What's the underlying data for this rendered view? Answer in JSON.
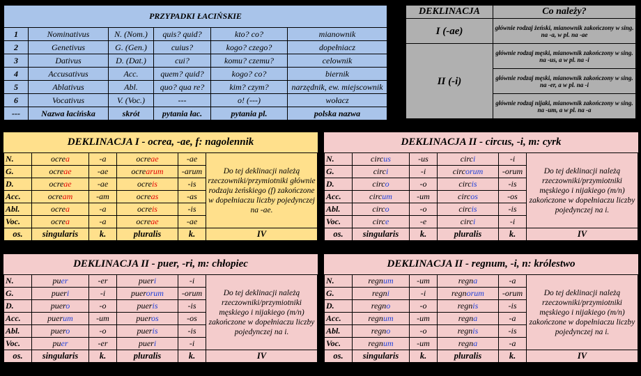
{
  "cases_table": {
    "title": "PRZYPADKI ŁACIŃSKIE",
    "rows": [
      [
        "1",
        "Nominativus",
        "N. (Nom.)",
        "quis? quid?",
        "kto? co?",
        "mianownik"
      ],
      [
        "2",
        "Genetivus",
        "G. (Gen.)",
        "cuius?",
        "kogo? czego?",
        "dopełniacz"
      ],
      [
        "3",
        "Dativus",
        "D. (Dat.)",
        "cui?",
        "komu? czemu?",
        "celownik"
      ],
      [
        "4",
        "Accusativus",
        "Acc.",
        "quem? quid?",
        "kogo? co?",
        "biernik"
      ],
      [
        "5",
        "Ablativus",
        "Abl.",
        "quo? qua re?",
        "kim? czym?",
        "narzędnik, ew. miejscownik"
      ],
      [
        "6",
        "Vocativus",
        "V. (Voc.)",
        "---",
        "o! (---)",
        "wołacz"
      ]
    ],
    "footer": [
      "---",
      "Nazwa łacińska",
      "skrót",
      "pytania łac.",
      "pytania pl.",
      "polska nazwa"
    ]
  },
  "declension_table": {
    "header": [
      "DEKLINACJA",
      "Co należy?"
    ],
    "groups": [
      {
        "name": "I (-ae)",
        "descriptions": [
          "głównie rodzaj żeński, mianownik zakończony w sing. na -a, w pl. na -ae"
        ]
      },
      {
        "name": "II (-i)",
        "descriptions": [
          "głównie rodzaj męski, mianownik zakończony w sing. na -us, a w pl. na -i",
          "głównie rodzaj męski, mianownik zakończony w sing. na -er, a w pl. na -i",
          "głównie rodzaj nijaki, mianownik zakończony w sing. na -um, a w pl. na -a"
        ]
      }
    ]
  },
  "panels": [
    {
      "title": "DEKLINACJA I - ocrea, -ae, f: nagolennik",
      "background": "#ffe08c",
      "ending_color": "#e00000",
      "rows": [
        {
          "case": "N.",
          "sing": [
            "ocre",
            "a"
          ],
          "sing_ending": "-a",
          "plur": [
            "ocre",
            "ae"
          ],
          "plur_ending": "-ae"
        },
        {
          "case": "G.",
          "sing": [
            "ocre",
            "ae"
          ],
          "sing_ending": "-ae",
          "plur": [
            "ocre",
            "arum"
          ],
          "plur_ending": "-arum"
        },
        {
          "case": "D.",
          "sing": [
            "ocre",
            "ae"
          ],
          "sing_ending": "-ae",
          "plur": [
            "ocre",
            "is"
          ],
          "plur_ending": "-is"
        },
        {
          "case": "Acc.",
          "sing": [
            "ocre",
            "am"
          ],
          "sing_ending": "-am",
          "plur": [
            "ocre",
            "as"
          ],
          "plur_ending": "-as"
        },
        {
          "case": "Abl.",
          "sing": [
            "ocre",
            "a"
          ],
          "sing_ending": "-a",
          "plur": [
            "ocre",
            "is"
          ],
          "plur_ending": "-is"
        },
        {
          "case": "Voc.",
          "sing": [
            "ocre",
            "a"
          ],
          "sing_ending": "-a",
          "plur": [
            "ocre",
            "ae"
          ],
          "plur_ending": "-ae"
        }
      ],
      "note": "Do tej deklinacji należą rzeczowniki/przymiotniki głównie rodzaju żeńskiego (f) zakończone w dopełniaczu liczby pojedynczej na -ae.",
      "footer": [
        "os.",
        "singularis",
        "k.",
        "pluralis",
        "k.",
        "IV"
      ]
    },
    {
      "title": "DEKLINACJA II -  circus, -i, m: cyrk",
      "background": "#f4cccc",
      "ending_color": "#1f3fd8",
      "rows": [
        {
          "case": "N.",
          "sing": [
            "circ",
            "us"
          ],
          "sing_ending": "-us",
          "plur": [
            "circ",
            "i"
          ],
          "plur_ending": "-i"
        },
        {
          "case": "G.",
          "sing": [
            "circ",
            "i"
          ],
          "sing_ending": "-i",
          "plur": [
            "circ",
            "orum"
          ],
          "plur_ending": "-orum"
        },
        {
          "case": "D.",
          "sing": [
            "circ",
            "o"
          ],
          "sing_ending": "-o",
          "plur": [
            "circ",
            "is"
          ],
          "plur_ending": "-is"
        },
        {
          "case": "Acc.",
          "sing": [
            "circ",
            "um"
          ],
          "sing_ending": "-um",
          "plur": [
            "circ",
            "os"
          ],
          "plur_ending": "-os"
        },
        {
          "case": "Abl.",
          "sing": [
            "circ",
            "o"
          ],
          "sing_ending": "-o",
          "plur": [
            "circ",
            "is"
          ],
          "plur_ending": "-is"
        },
        {
          "case": "Voc.",
          "sing": [
            "circ",
            "e"
          ],
          "sing_ending": "-e",
          "plur": [
            "circ",
            "i"
          ],
          "plur_ending": "-i"
        }
      ],
      "note": "Do tej deklinacji należą rzeczowniki/przymiotniki męskiego i nijakiego (m/n) zakończone w dopełniaczu liczby pojedynczej na i.",
      "footer": [
        "os.",
        "singularis",
        "k.",
        "pluralis",
        "k.",
        "IV"
      ]
    },
    {
      "title": "DEKLINACJA II -  puer, -ri, m: chłopiec",
      "background": "#f4cccc",
      "ending_color": "#1f3fd8",
      "rows": [
        {
          "case": "N.",
          "sing": [
            "pu",
            "er"
          ],
          "sing_ending": "-er",
          "plur": [
            "puer",
            "i"
          ],
          "plur_ending": "-i"
        },
        {
          "case": "G.",
          "sing": [
            "puer",
            "i"
          ],
          "sing_ending": "-i",
          "plur": [
            "puer",
            "orum"
          ],
          "plur_ending": "-orum"
        },
        {
          "case": "D.",
          "sing": [
            "puer",
            "o"
          ],
          "sing_ending": "-o",
          "plur": [
            "puer",
            "is"
          ],
          "plur_ending": "-is"
        },
        {
          "case": "Acc.",
          "sing": [
            "puer",
            "um"
          ],
          "sing_ending": "-um",
          "plur": [
            "puer",
            "os"
          ],
          "plur_ending": "-os"
        },
        {
          "case": "Abl.",
          "sing": [
            "puer",
            "o"
          ],
          "sing_ending": "-o",
          "plur": [
            "puer",
            "is"
          ],
          "plur_ending": "-is"
        },
        {
          "case": "Voc.",
          "sing": [
            "pu",
            "er"
          ],
          "sing_ending": "-er",
          "plur": [
            "puer",
            "i"
          ],
          "plur_ending": "-i"
        }
      ],
      "note": "Do tej deklinacji należą rzeczowniki/przymiotniki męskiego i nijakiego (m/n) zakończone w dopełniaczu liczby pojedynczej na i.",
      "footer": [
        "os.",
        "singularis",
        "k.",
        "pluralis",
        "k.",
        "IV"
      ]
    },
    {
      "title": "DEKLINACJA II -  regnum, -i, n: królestwo",
      "background": "#f4cccc",
      "ending_color": "#1f3fd8",
      "rows": [
        {
          "case": "N.",
          "sing": [
            "regn",
            "um"
          ],
          "sing_ending": "-um",
          "plur": [
            "regn",
            "a"
          ],
          "plur_ending": "-a"
        },
        {
          "case": "G.",
          "sing": [
            "regn",
            "i"
          ],
          "sing_ending": "-i",
          "plur": [
            "regn",
            "orum"
          ],
          "plur_ending": "-orum"
        },
        {
          "case": "D.",
          "sing": [
            "regn",
            "o"
          ],
          "sing_ending": "-o",
          "plur": [
            "regn",
            "is"
          ],
          "plur_ending": "-is"
        },
        {
          "case": "Acc.",
          "sing": [
            "regn",
            "um"
          ],
          "sing_ending": "-um",
          "plur": [
            "regn",
            "a"
          ],
          "plur_ending": "-a"
        },
        {
          "case": "Abl.",
          "sing": [
            "regn",
            "o"
          ],
          "sing_ending": "-o",
          "plur": [
            "regn",
            "is"
          ],
          "plur_ending": "-is"
        },
        {
          "case": "Voc.",
          "sing": [
            "regn",
            "um"
          ],
          "sing_ending": "-um",
          "plur": [
            "regn",
            "a"
          ],
          "plur_ending": "-a"
        }
      ],
      "note": "Do tej deklinacji należą rzeczowniki/przymiotniki męskiego i nijakiego (m/n) zakończone w dopełniaczu liczby pojedynczej na i.",
      "footer": [
        "os.",
        "singularis",
        "k.",
        "pluralis",
        "k.",
        "IV"
      ]
    }
  ]
}
